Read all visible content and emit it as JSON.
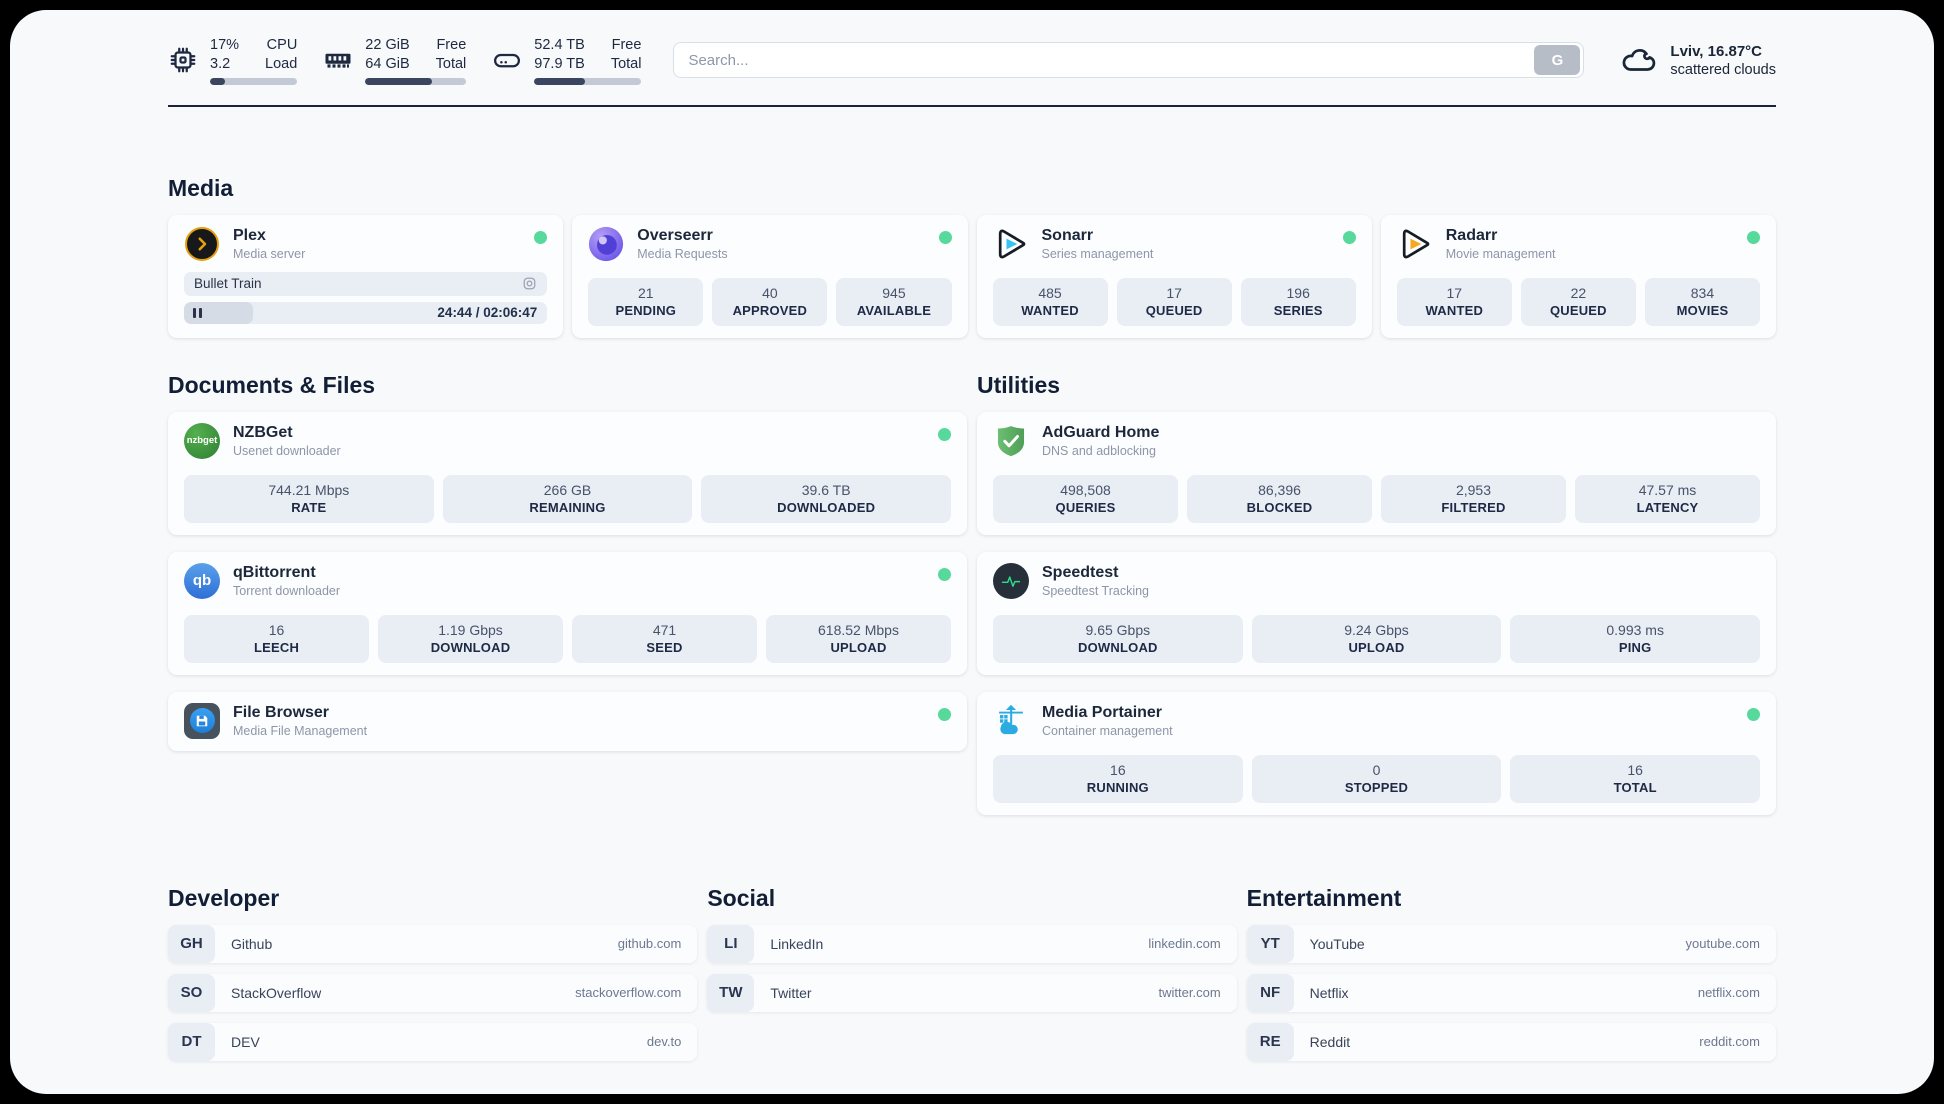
{
  "colors": {
    "status_online": "#57d99b",
    "accent_dark": "#1b2538",
    "stat_box_bg": "#e9edf4"
  },
  "header": {
    "stats": [
      {
        "icon": "cpu-icon",
        "value_top": "17%",
        "value_bottom": "3.2",
        "label_top": "CPU",
        "label_bottom": "Load",
        "progress": 17
      },
      {
        "icon": "ram-icon",
        "value_top": "22 GiB",
        "value_bottom": "64 GiB",
        "label_top": "Free",
        "label_bottom": "Total",
        "progress": 66
      },
      {
        "icon": "disk-icon",
        "value_top": "52.4 TB",
        "value_bottom": "97.9 TB",
        "label_top": "Free",
        "label_bottom": "Total",
        "progress": 47
      }
    ],
    "search": {
      "placeholder": "Search...",
      "button_label": "G"
    },
    "weather": {
      "location": "Lviv, 16.87°C",
      "condition": "scattered clouds"
    }
  },
  "sections": {
    "media": {
      "title": "Media",
      "plex": {
        "name": "Plex",
        "subtitle": "Media server",
        "online": true,
        "now_playing": "Bullet Train",
        "time_display": "24:44 / 02:06:47",
        "progress": 19
      },
      "overseerr": {
        "name": "Overseerr",
        "subtitle": "Media Requests",
        "online": true,
        "stats": [
          {
            "value": "21",
            "label": "PENDING"
          },
          {
            "value": "40",
            "label": "APPROVED"
          },
          {
            "value": "945",
            "label": "AVAILABLE"
          }
        ]
      },
      "sonarr": {
        "name": "Sonarr",
        "subtitle": "Series management",
        "online": true,
        "stats": [
          {
            "value": "485",
            "label": "WANTED"
          },
          {
            "value": "17",
            "label": "QUEUED"
          },
          {
            "value": "196",
            "label": "SERIES"
          }
        ]
      },
      "radarr": {
        "name": "Radarr",
        "subtitle": "Movie management",
        "online": true,
        "stats": [
          {
            "value": "17",
            "label": "WANTED"
          },
          {
            "value": "22",
            "label": "QUEUED"
          },
          {
            "value": "834",
            "label": "MOVIES"
          }
        ]
      }
    },
    "documents": {
      "title": "Documents & Files",
      "nzbget": {
        "name": "NZBGet",
        "subtitle": "Usenet downloader",
        "online": true,
        "icon_text": "nzbget",
        "stats": [
          {
            "value": "744.21 Mbps",
            "label": "RATE"
          },
          {
            "value": "266 GB",
            "label": "REMAINING"
          },
          {
            "value": "39.6 TB",
            "label": "DOWNLOADED"
          }
        ]
      },
      "qbittorrent": {
        "name": "qBittorrent",
        "subtitle": "Torrent downloader",
        "online": true,
        "icon_text": "qb",
        "stats": [
          {
            "value": "16",
            "label": "LEECH"
          },
          {
            "value": "1.19 Gbps",
            "label": "DOWNLOAD"
          },
          {
            "value": "471",
            "label": "SEED"
          },
          {
            "value": "618.52 Mbps",
            "label": "UPLOAD"
          }
        ]
      },
      "filebrowser": {
        "name": "File Browser",
        "subtitle": "Media File Management",
        "online": true
      }
    },
    "utilities": {
      "title": "Utilities",
      "adguard": {
        "name": "AdGuard Home",
        "subtitle": "DNS and adblocking",
        "online": false,
        "stats": [
          {
            "value": "498,508",
            "label": "QUERIES"
          },
          {
            "value": "86,396",
            "label": "BLOCKED"
          },
          {
            "value": "2,953",
            "label": "FILTERED"
          },
          {
            "value": "47.57 ms",
            "label": "LATENCY"
          }
        ]
      },
      "speedtest": {
        "name": "Speedtest",
        "subtitle": "Speedtest Tracking",
        "online": false,
        "stats": [
          {
            "value": "9.65 Gbps",
            "label": "DOWNLOAD"
          },
          {
            "value": "9.24 Gbps",
            "label": "UPLOAD"
          },
          {
            "value": "0.993 ms",
            "label": "PING"
          }
        ]
      },
      "portainer": {
        "name": "Media Portainer",
        "subtitle": "Container management",
        "online": true,
        "stats": [
          {
            "value": "16",
            "label": "RUNNING"
          },
          {
            "value": "0",
            "label": "STOPPED"
          },
          {
            "value": "16",
            "label": "TOTAL"
          }
        ]
      }
    },
    "developer": {
      "title": "Developer",
      "links": [
        {
          "abbr": "GH",
          "name": "Github",
          "domain": "github.com"
        },
        {
          "abbr": "SO",
          "name": "StackOverflow",
          "domain": "stackoverflow.com"
        },
        {
          "abbr": "DT",
          "name": "DEV",
          "domain": "dev.to"
        }
      ]
    },
    "social": {
      "title": "Social",
      "links": [
        {
          "abbr": "LI",
          "name": "LinkedIn",
          "domain": "linkedin.com"
        },
        {
          "abbr": "TW",
          "name": "Twitter",
          "domain": "twitter.com"
        }
      ]
    },
    "entertainment": {
      "title": "Entertainment",
      "links": [
        {
          "abbr": "YT",
          "name": "YouTube",
          "domain": "youtube.com"
        },
        {
          "abbr": "NF",
          "name": "Netflix",
          "domain": "netflix.com"
        },
        {
          "abbr": "RE",
          "name": "Reddit",
          "domain": "reddit.com"
        }
      ]
    }
  }
}
